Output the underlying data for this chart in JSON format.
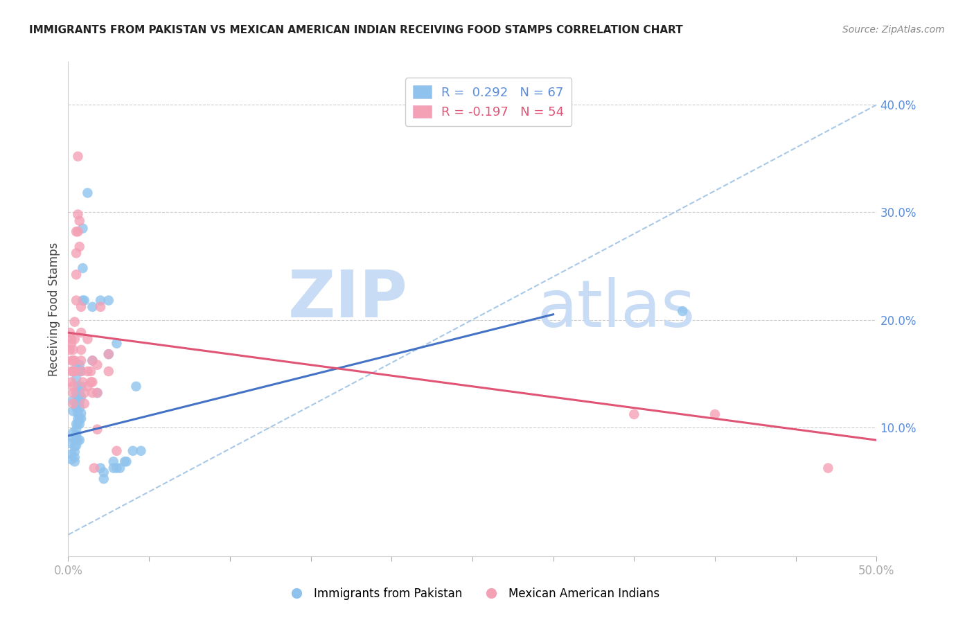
{
  "title": "IMMIGRANTS FROM PAKISTAN VS MEXICAN AMERICAN INDIAN RECEIVING FOOD STAMPS CORRELATION CHART",
  "source": "Source: ZipAtlas.com",
  "ylabel_label": "Receiving Food Stamps",
  "xmin": 0.0,
  "xmax": 0.5,
  "ymin": -0.02,
  "ymax": 0.44,
  "x_ticks": [
    0.0,
    0.05,
    0.1,
    0.15,
    0.2,
    0.25,
    0.3,
    0.35,
    0.4,
    0.45,
    0.5
  ],
  "x_tick_labels_show": [
    "0.0%",
    "",
    "",
    "",
    "",
    "",
    "",
    "",
    "",
    "",
    "50.0%"
  ],
  "y_ticks": [
    0.1,
    0.2,
    0.3,
    0.4
  ],
  "y_tick_labels": [
    "10.0%",
    "20.0%",
    "30.0%",
    "40.0%"
  ],
  "color_blue": "#8FC3ED",
  "color_pink": "#F4A0B5",
  "line_blue": "#4472C4",
  "line_pink": "#E05575",
  "line_dash_color": "#A8C8E8",
  "watermark_zip": "ZIP",
  "watermark_atlas": "atlas",
  "scatter_blue": [
    [
      0.001,
      0.085
    ],
    [
      0.002,
      0.075
    ],
    [
      0.002,
      0.07
    ],
    [
      0.003,
      0.125
    ],
    [
      0.003,
      0.115
    ],
    [
      0.003,
      0.095
    ],
    [
      0.003,
      0.09
    ],
    [
      0.004,
      0.082
    ],
    [
      0.004,
      0.077
    ],
    [
      0.004,
      0.072
    ],
    [
      0.004,
      0.068
    ],
    [
      0.005,
      0.155
    ],
    [
      0.005,
      0.145
    ],
    [
      0.005,
      0.132
    ],
    [
      0.005,
      0.122
    ],
    [
      0.005,
      0.118
    ],
    [
      0.005,
      0.103
    ],
    [
      0.005,
      0.098
    ],
    [
      0.005,
      0.093
    ],
    [
      0.005,
      0.088
    ],
    [
      0.005,
      0.083
    ],
    [
      0.006,
      0.138
    ],
    [
      0.006,
      0.128
    ],
    [
      0.006,
      0.122
    ],
    [
      0.006,
      0.113
    ],
    [
      0.006,
      0.108
    ],
    [
      0.006,
      0.103
    ],
    [
      0.006,
      0.088
    ],
    [
      0.007,
      0.158
    ],
    [
      0.007,
      0.153
    ],
    [
      0.007,
      0.133
    ],
    [
      0.007,
      0.128
    ],
    [
      0.007,
      0.123
    ],
    [
      0.007,
      0.118
    ],
    [
      0.007,
      0.108
    ],
    [
      0.007,
      0.103
    ],
    [
      0.007,
      0.088
    ],
    [
      0.008,
      0.152
    ],
    [
      0.008,
      0.138
    ],
    [
      0.008,
      0.128
    ],
    [
      0.008,
      0.113
    ],
    [
      0.008,
      0.108
    ],
    [
      0.009,
      0.285
    ],
    [
      0.009,
      0.248
    ],
    [
      0.009,
      0.218
    ],
    [
      0.01,
      0.218
    ],
    [
      0.012,
      0.318
    ],
    [
      0.015,
      0.212
    ],
    [
      0.015,
      0.162
    ],
    [
      0.018,
      0.132
    ],
    [
      0.02,
      0.218
    ],
    [
      0.02,
      0.062
    ],
    [
      0.022,
      0.058
    ],
    [
      0.022,
      0.052
    ],
    [
      0.025,
      0.218
    ],
    [
      0.025,
      0.168
    ],
    [
      0.028,
      0.068
    ],
    [
      0.028,
      0.062
    ],
    [
      0.03,
      0.178
    ],
    [
      0.03,
      0.062
    ],
    [
      0.032,
      0.062
    ],
    [
      0.035,
      0.068
    ],
    [
      0.036,
      0.068
    ],
    [
      0.04,
      0.078
    ],
    [
      0.042,
      0.138
    ],
    [
      0.045,
      0.078
    ],
    [
      0.38,
      0.208
    ]
  ],
  "scatter_pink": [
    [
      0.001,
      0.188
    ],
    [
      0.001,
      0.172
    ],
    [
      0.002,
      0.182
    ],
    [
      0.002,
      0.178
    ],
    [
      0.002,
      0.162
    ],
    [
      0.002,
      0.152
    ],
    [
      0.002,
      0.142
    ],
    [
      0.003,
      0.172
    ],
    [
      0.003,
      0.162
    ],
    [
      0.003,
      0.152
    ],
    [
      0.003,
      0.138
    ],
    [
      0.003,
      0.132
    ],
    [
      0.003,
      0.122
    ],
    [
      0.004,
      0.198
    ],
    [
      0.004,
      0.182
    ],
    [
      0.004,
      0.162
    ],
    [
      0.004,
      0.152
    ],
    [
      0.005,
      0.282
    ],
    [
      0.005,
      0.262
    ],
    [
      0.005,
      0.242
    ],
    [
      0.005,
      0.218
    ],
    [
      0.006,
      0.352
    ],
    [
      0.006,
      0.298
    ],
    [
      0.006,
      0.282
    ],
    [
      0.007,
      0.292
    ],
    [
      0.007,
      0.268
    ],
    [
      0.008,
      0.212
    ],
    [
      0.008,
      0.188
    ],
    [
      0.008,
      0.172
    ],
    [
      0.008,
      0.162
    ],
    [
      0.008,
      0.152
    ],
    [
      0.009,
      0.142
    ],
    [
      0.01,
      0.132
    ],
    [
      0.01,
      0.122
    ],
    [
      0.012,
      0.182
    ],
    [
      0.012,
      0.152
    ],
    [
      0.012,
      0.138
    ],
    [
      0.014,
      0.152
    ],
    [
      0.014,
      0.142
    ],
    [
      0.015,
      0.162
    ],
    [
      0.015,
      0.142
    ],
    [
      0.015,
      0.132
    ],
    [
      0.016,
      0.062
    ],
    [
      0.018,
      0.158
    ],
    [
      0.018,
      0.132
    ],
    [
      0.018,
      0.098
    ],
    [
      0.02,
      0.212
    ],
    [
      0.025,
      0.168
    ],
    [
      0.025,
      0.152
    ],
    [
      0.03,
      0.078
    ],
    [
      0.35,
      0.112
    ],
    [
      0.4,
      0.112
    ],
    [
      0.47,
      0.062
    ]
  ],
  "blue_line_x": [
    0.0,
    0.3
  ],
  "blue_line_y": [
    0.092,
    0.205
  ],
  "pink_line_x": [
    0.0,
    0.5
  ],
  "pink_line_y": [
    0.188,
    0.088
  ],
  "diag_line_x": [
    0.0,
    0.5
  ],
  "diag_line_y": [
    0.0,
    0.4
  ]
}
